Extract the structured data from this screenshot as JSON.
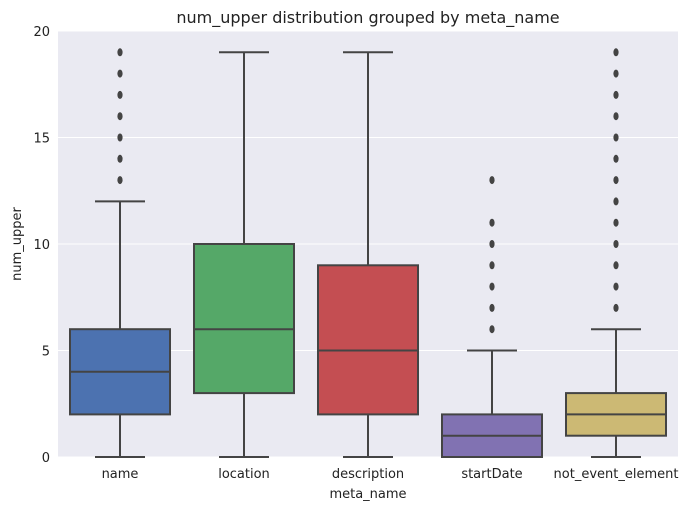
{
  "chart_data": {
    "type": "box",
    "title": "num_upper distribution grouped by meta_name",
    "xlabel": "meta_name",
    "ylabel": "num_upper",
    "ylim": [
      0,
      20
    ],
    "yticks": [
      0,
      5,
      10,
      15,
      20
    ],
    "grid": true,
    "categories": [
      "name",
      "location",
      "description",
      "startDate",
      "not_event_element"
    ],
    "boxes": [
      {
        "category": "name",
        "whisker_low": 0,
        "q1": 2,
        "median": 4,
        "q3": 6,
        "whisker_high": 12,
        "outliers": [
          13,
          14,
          15,
          16,
          17,
          18,
          19
        ],
        "color": "#4c72b0"
      },
      {
        "category": "location",
        "whisker_low": 0,
        "q1": 3,
        "median": 6,
        "q3": 10,
        "whisker_high": 19,
        "outliers": [],
        "color": "#55a868"
      },
      {
        "category": "description",
        "whisker_low": 0,
        "q1": 2,
        "median": 5,
        "q3": 9,
        "whisker_high": 19,
        "outliers": [],
        "color": "#c44e52"
      },
      {
        "category": "startDate",
        "whisker_low": 0,
        "q1": 0,
        "median": 1,
        "q3": 2,
        "whisker_high": 5,
        "outliers": [
          6,
          7,
          8,
          9,
          10,
          11,
          13
        ],
        "color": "#8172b2"
      },
      {
        "category": "not_event_element",
        "whisker_low": 0,
        "q1": 1,
        "median": 2,
        "q3": 3,
        "whisker_high": 6,
        "outliers": [
          7,
          8,
          9,
          10,
          11,
          12,
          13,
          14,
          15,
          16,
          17,
          18,
          19
        ],
        "color": "#ccb974"
      }
    ]
  }
}
